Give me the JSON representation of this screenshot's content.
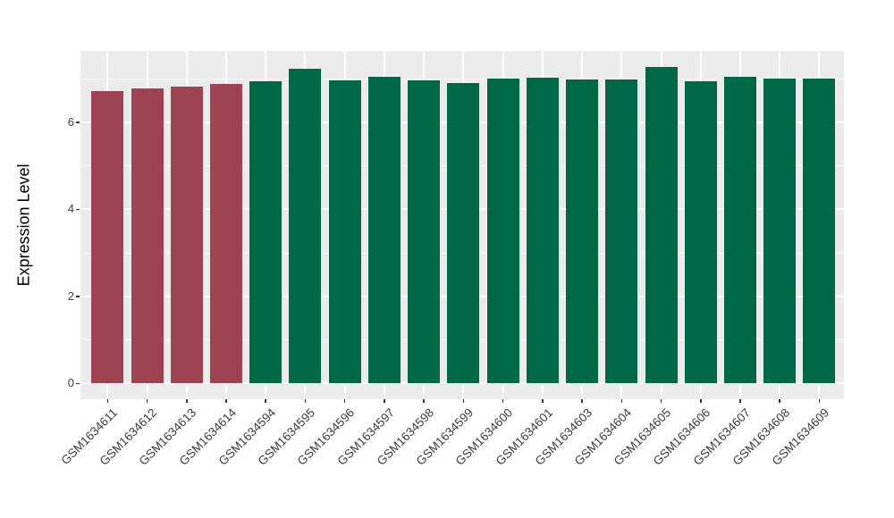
{
  "chart_data": {
    "type": "bar",
    "title": "",
    "xlabel": "",
    "ylabel": "Expression Level",
    "categories": [
      "GSM1634611",
      "GSM1634612",
      "GSM1634613",
      "GSM1634614",
      "GSM1634594",
      "GSM1634595",
      "GSM1634596",
      "GSM1634597",
      "GSM1634598",
      "GSM1634599",
      "GSM1634600",
      "GSM1634601",
      "GSM1634603",
      "GSM1634604",
      "GSM1634605",
      "GSM1634606",
      "GSM1634607",
      "GSM1634608",
      "GSM1634609"
    ],
    "values": [
      6.72,
      6.77,
      6.81,
      6.88,
      6.94,
      7.22,
      6.97,
      7.04,
      6.97,
      6.91,
      7.0,
      7.03,
      6.98,
      6.99,
      7.28,
      6.95,
      7.05,
      7.01,
      7.01
    ],
    "bar_colors": [
      "#9E4352",
      "#9E4352",
      "#9E4352",
      "#9E4352",
      "#006847",
      "#006847",
      "#006847",
      "#006847",
      "#006847",
      "#006847",
      "#006847",
      "#006847",
      "#006847",
      "#006847",
      "#006847",
      "#006847",
      "#006847",
      "#006847",
      "#006847"
    ],
    "groups": [
      {
        "color": "#9E4352",
        "count": 4
      },
      {
        "color": "#006847",
        "count": 15
      }
    ],
    "yticks": [
      0,
      2,
      4,
      6
    ],
    "minor_yticks": [
      1,
      3,
      5,
      7
    ],
    "ylim": [
      -0.36,
      7.64
    ],
    "grid": true,
    "legend_position": "none",
    "panel_background": "#EBEBEB",
    "gridline_color": "#FFFFFF"
  }
}
